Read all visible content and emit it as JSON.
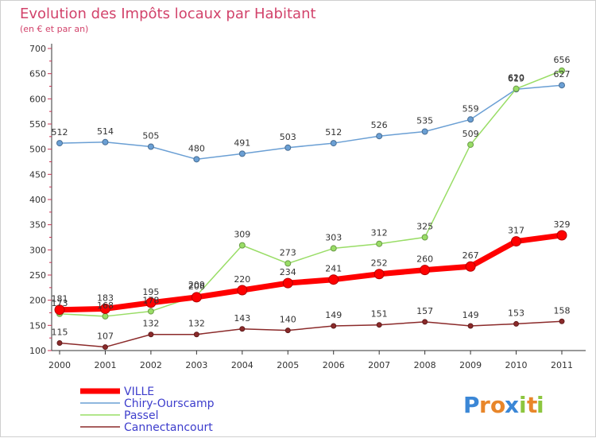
{
  "chart_data": {
    "type": "line",
    "title": "Evolution des Impôts locaux par Habitant",
    "subtitle": "(en € et par an)",
    "xlabel": "",
    "ylabel": "",
    "x": [
      "2000",
      "2001",
      "2002",
      "2003",
      "2004",
      "2005",
      "2006",
      "2007",
      "2008",
      "2009",
      "2010",
      "2011"
    ],
    "ylim": [
      100,
      700
    ],
    "yticks": [
      "100",
      "150",
      "200",
      "250",
      "300",
      "350",
      "400",
      "450",
      "500",
      "550",
      "600",
      "650",
      "700"
    ],
    "grid": false,
    "legend_position": "bottom-left",
    "series": [
      {
        "name": "VILLE",
        "color": "#ff0000",
        "values": [
          181,
          183,
          195,
          206,
          220,
          234,
          241,
          252,
          260,
          267,
          317,
          329
        ]
      },
      {
        "name": "Chiry-Ourscamp",
        "color": "#6a9fd4",
        "values": [
          512,
          514,
          505,
          480,
          491,
          503,
          512,
          526,
          535,
          559,
          619,
          627
        ]
      },
      {
        "name": "Passel",
        "color": "#99dd66",
        "values": [
          173,
          168,
          178,
          209,
          309,
          273,
          303,
          312,
          325,
          509,
          620,
          656
        ]
      },
      {
        "name": "Cannectancourt",
        "color": "#8b2a2a",
        "values": [
          115,
          107,
          132,
          132,
          143,
          140,
          149,
          151,
          157,
          149,
          153,
          158
        ]
      }
    ]
  },
  "logo": {
    "letters": [
      "P",
      "r",
      "o",
      "x",
      "i",
      "t",
      "i"
    ],
    "colors": [
      "#3b87d6",
      "#e8862a",
      "#e8862a",
      "#3b87d6",
      "#8dc63f",
      "#e8862a",
      "#8dc63f"
    ]
  }
}
